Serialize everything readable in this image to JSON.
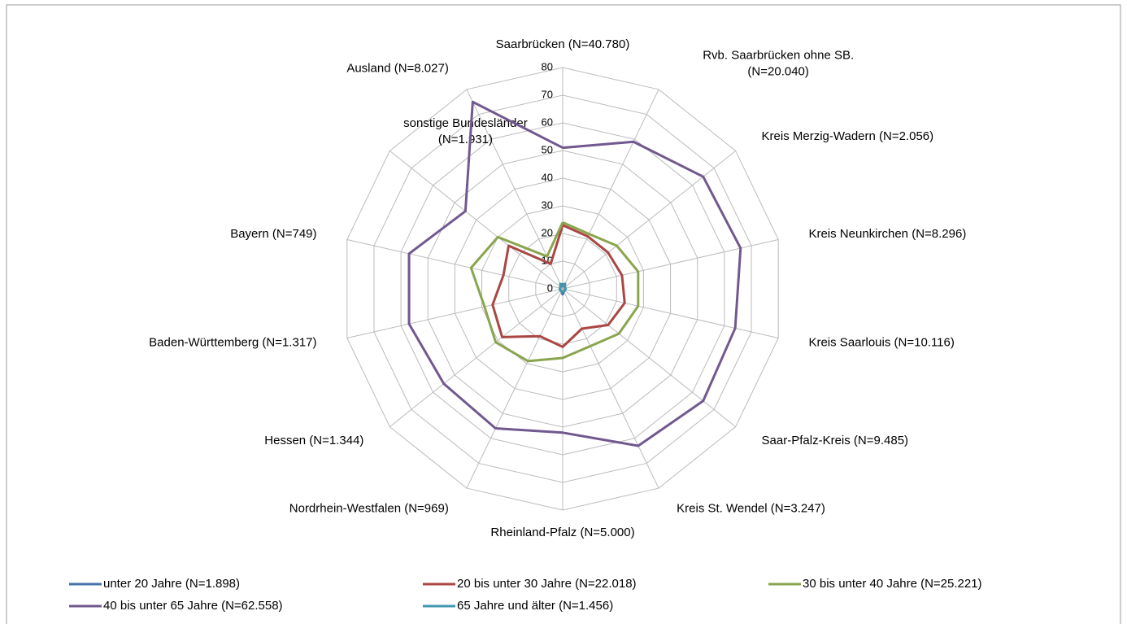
{
  "chart_data": {
    "type": "radar",
    "categories": [
      "Saarbrücken (N=40.780)",
      "Rvb. Saarbrücken ohne SB. (N=20.040)",
      "Kreis Merzig-Wadern (N=2.056)",
      "Kreis Neunkirchen (N=8.296)",
      "Kreis Saarlouis (N=10.116)",
      "Saar-Pfalz-Kreis (N=9.485)",
      "Kreis St. Wendel (N=3.247)",
      "Rheinland-Pfalz (N=5.000)",
      "Nordrhein-Westfalen (N=969)",
      "Hessen (N=1.344)",
      "Baden-Württemberg (N=1.317)",
      "Bayern (N=749)",
      "sonstige Bundesländer (N=1.931)",
      "Ausland (N=8.027)"
    ],
    "series": [
      {
        "name": "unter 20 Jahre (N=1.898)",
        "color": "#4572a7",
        "values": [
          2,
          1,
          1,
          1,
          1,
          1,
          1,
          2,
          1,
          1,
          1,
          1,
          1,
          1
        ]
      },
      {
        "name": "20 bis unter 30 Jahre (N=22.018)",
        "color": "#aa4643",
        "values": [
          23,
          21,
          21,
          22,
          23,
          21,
          16,
          21,
          19,
          28,
          26,
          22,
          25,
          10
        ]
      },
      {
        "name": "30 bis unter 40 Jahre (N=25.221)",
        "color": "#89a54e",
        "values": [
          24,
          22,
          25,
          28,
          28,
          26,
          23,
          25,
          29,
          31,
          29,
          34,
          30,
          13
        ]
      },
      {
        "name": "40 bis unter 65 Jahre (N=62.558)",
        "color": "#71588f",
        "values": [
          51,
          59,
          65,
          66,
          64,
          65,
          63,
          52,
          56,
          55,
          57,
          57,
          45,
          75
        ]
      },
      {
        "name": "65 Jahre und älter (N=1.456)",
        "color": "#4198af",
        "values": [
          1,
          2,
          1,
          1,
          1,
          1,
          1,
          1,
          1,
          1,
          1,
          1,
          1,
          2
        ]
      }
    ],
    "ylim": [
      0,
      80
    ],
    "yticks": [
      0,
      10,
      20,
      30,
      40,
      50,
      60,
      70,
      80
    ],
    "grid": true,
    "legend": "bottom"
  }
}
